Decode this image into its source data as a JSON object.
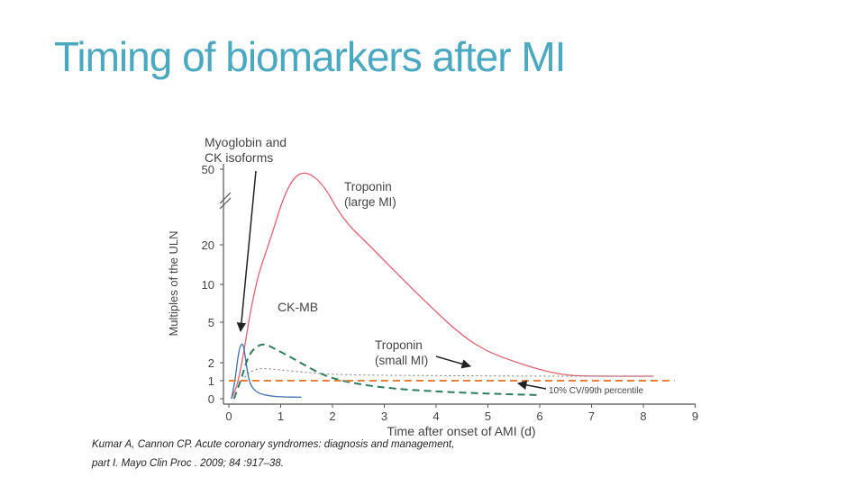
{
  "slide": {
    "title": "Timing of biomarkers after MI",
    "citation": "Kumar A, Cannon CP. Acute coronary syndromes: diagnosis and management, part I. Mayo Clin Proc . 2009; 84 :917–38."
  },
  "colors": {
    "title": "#4aa8c0",
    "troponin": "#e06070",
    "ckmb": "#2e7d5b",
    "myoglobin": "#3d6fb0",
    "reference_line": "#e8803a",
    "axis": "#555555"
  },
  "chart_data": {
    "type": "line",
    "xlabel": "Time after onset of AMI (d)",
    "ylabel": "Multiples of the ULN",
    "xlim": [
      0,
      9
    ],
    "x_ticks": [
      "0",
      "1",
      "2",
      "3",
      "4",
      "5",
      "6",
      "7",
      "8",
      "9"
    ],
    "y_scale": "categorical-broken",
    "y_ticks": [
      "0",
      "1",
      "2",
      "5",
      "10",
      "20",
      "50"
    ],
    "axis_break": true,
    "series": [
      {
        "name": "Troponin (large MI)",
        "color": "#e06070",
        "style": "solid",
        "points": [
          [
            0.05,
            0
          ],
          [
            0.2,
            1
          ],
          [
            0.5,
            10
          ],
          [
            0.8,
            22
          ],
          [
            1.1,
            42
          ],
          [
            1.4,
            50
          ],
          [
            1.8,
            45
          ],
          [
            2.2,
            30
          ],
          [
            2.7,
            20
          ],
          [
            3.3,
            12
          ],
          [
            3.9,
            7
          ],
          [
            4.5,
            4
          ],
          [
            5.0,
            2.8
          ],
          [
            5.5,
            2.1
          ],
          [
            6.0,
            1.6
          ],
          [
            6.5,
            1.3
          ],
          [
            7.0,
            1.25
          ],
          [
            8.2,
            1.25
          ]
        ]
      },
      {
        "name": "CK-MB",
        "color": "#2e7d5b",
        "style": "dashed",
        "points": [
          [
            0.1,
            0
          ],
          [
            0.25,
            1.2
          ],
          [
            0.4,
            2.8
          ],
          [
            0.65,
            3.5
          ],
          [
            0.9,
            3.0
          ],
          [
            1.2,
            2.4
          ],
          [
            1.5,
            1.8
          ],
          [
            1.9,
            1.2
          ],
          [
            2.5,
            0.8
          ],
          [
            3.2,
            0.55
          ],
          [
            4.0,
            0.4
          ],
          [
            5.0,
            0.28
          ],
          [
            6.0,
            0.2
          ]
        ]
      },
      {
        "name": "Myoglobin and CK isoforms",
        "color": "#3d6fb0",
        "style": "solid",
        "points": [
          [
            0.05,
            0
          ],
          [
            0.12,
            1
          ],
          [
            0.2,
            3.2
          ],
          [
            0.28,
            3.5
          ],
          [
            0.33,
            2
          ],
          [
            0.4,
            0.8
          ],
          [
            0.55,
            0.3
          ],
          [
            0.8,
            0.15
          ],
          [
            1.0,
            0.1
          ],
          [
            1.4,
            0.08
          ]
        ]
      },
      {
        "name": "Troponin (small MI)",
        "color": "#777777",
        "style": "dotted",
        "points": [
          [
            0.25,
            1
          ],
          [
            0.4,
            1.5
          ],
          [
            0.6,
            1.7
          ],
          [
            1.0,
            1.6
          ],
          [
            1.5,
            1.45
          ],
          [
            2.0,
            1.35
          ],
          [
            3.0,
            1.3
          ],
          [
            4.0,
            1.28
          ],
          [
            6.0,
            1.25
          ],
          [
            8.2,
            1.25
          ]
        ]
      },
      {
        "name": "10% CV/99th percentile",
        "color": "#e8803a",
        "style": "dashed",
        "points": [
          [
            0,
            1
          ],
          [
            8.6,
            1
          ]
        ]
      }
    ],
    "annotations": [
      {
        "text": [
          "Myoglobin and",
          "CK isoforms"
        ]
      },
      {
        "text": [
          "Troponin",
          "(large MI)"
        ]
      },
      {
        "text": [
          "CK-MB"
        ]
      },
      {
        "text": [
          "Troponin",
          "(small MI)"
        ]
      },
      {
        "text": [
          "10% CV/99th percentile"
        ]
      }
    ]
  }
}
